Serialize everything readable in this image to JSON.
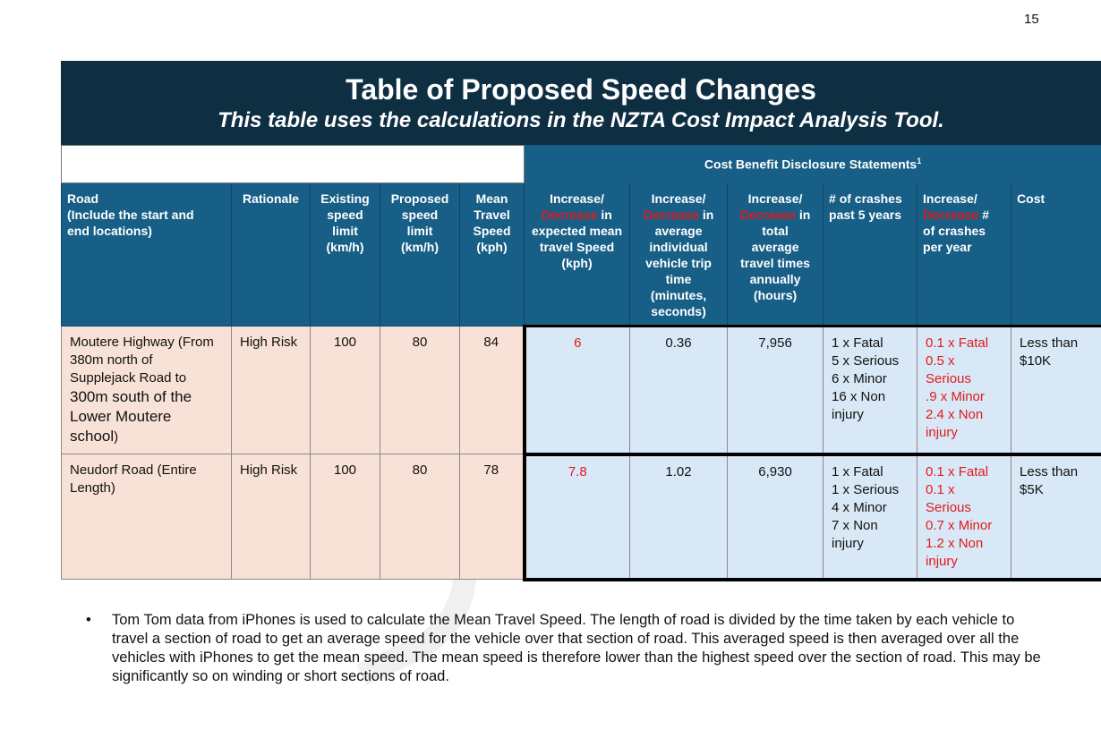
{
  "page_number": "15",
  "title": "Table of Proposed Speed Changes",
  "subtitle": "This table uses the calculations in the NZTA Cost Impact Analysis Tool.",
  "cost_benefit_header": "Cost Benefit Disclosure Statements",
  "cost_benefit_footnote": "1",
  "headers": {
    "road": [
      "Road",
      "(Include the start and",
      "end locations)"
    ],
    "rationale": "Rationale",
    "existing": [
      "Existing",
      "speed",
      "limit",
      "(km/h)"
    ],
    "proposed": [
      "Proposed",
      "speed",
      "limit",
      "(km/h)"
    ],
    "mean": [
      "Mean",
      "Travel",
      "Speed",
      "(kph)"
    ],
    "inc_speed": {
      "a": "Increase/",
      "red": "Decrease",
      "b": " in",
      "rest": [
        "expected mean",
        "travel Speed",
        "(kph)"
      ]
    },
    "inc_time": {
      "a": "Increase/",
      "red": "Decrease",
      "b": " in",
      "rest": [
        "average",
        "individual",
        "vehicle trip",
        "time",
        "(minutes,",
        "seconds)"
      ]
    },
    "inc_total": {
      "a": "Increase/",
      "red": "Decrease",
      "b": " in",
      "rest": [
        "total",
        "average",
        "travel times",
        "annually",
        "(hours)"
      ]
    },
    "crashes": [
      "# of crashes",
      "past 5 years"
    ],
    "inc_crashes": {
      "a": "Increase/",
      "red": "Decrease",
      "b": " #",
      "rest": [
        "of crashes",
        "per year"
      ]
    },
    "cost": "Cost"
  },
  "rows": [
    {
      "road_small": [
        "Moutere Highway (From",
        "380m north of",
        "Supplejack Road to"
      ],
      "road_big": [
        "300m south of the",
        "Lower Moutere",
        "school"
      ],
      "road_tail": ")",
      "rationale": "High Risk",
      "existing": "100",
      "proposed": "80",
      "mean": "84",
      "speed_change": "6",
      "trip_time": "0.36",
      "total_time": "7,956",
      "crashes": [
        "1 x Fatal",
        "5 x Serious",
        "6 x Minor",
        "16 x Non",
        "injury"
      ],
      "crash_change": [
        "0.1 x Fatal",
        "0.5 x",
        "Serious",
        ".9 x Minor",
        "2.4 x Non",
        "injury"
      ],
      "cost": [
        "Less than",
        "$10K"
      ]
    },
    {
      "road_small": [
        "Neudorf Road (Entire",
        "Length)"
      ],
      "rationale": "High Risk",
      "existing": "100",
      "proposed": "80",
      "mean": "78",
      "speed_change": "7.8",
      "trip_time": "1.02",
      "total_time": "6,930",
      "crashes": [
        "1 x Fatal",
        "1 x Serious",
        "4 x Minor",
        "7 x Non",
        "injury"
      ],
      "crash_change": [
        "0.1 x Fatal",
        "0.1 x",
        "Serious",
        "0.7 x Minor",
        "1.2 x Non",
        "injury"
      ],
      "cost": [
        "Less than",
        "$5K"
      ]
    }
  ],
  "bullet": "Tom Tom data from iPhones is used to calculate the Mean Travel Speed. The length of road is divided by the time taken by each vehicle to travel a section of road to get an average speed for the vehicle over that section of road. This averaged speed is then averaged over all the vehicles with iPhones to get the mean speed. The mean speed is therefore lower than the highest speed over the section of road. This may be significantly so on winding or short sections of road.",
  "colors": {
    "title_bg": "#0e2e42",
    "header_bg": "#175f86",
    "peach": "#f8e1d7",
    "light_blue": "#d9e8f6",
    "red": "#e01b1b"
  }
}
